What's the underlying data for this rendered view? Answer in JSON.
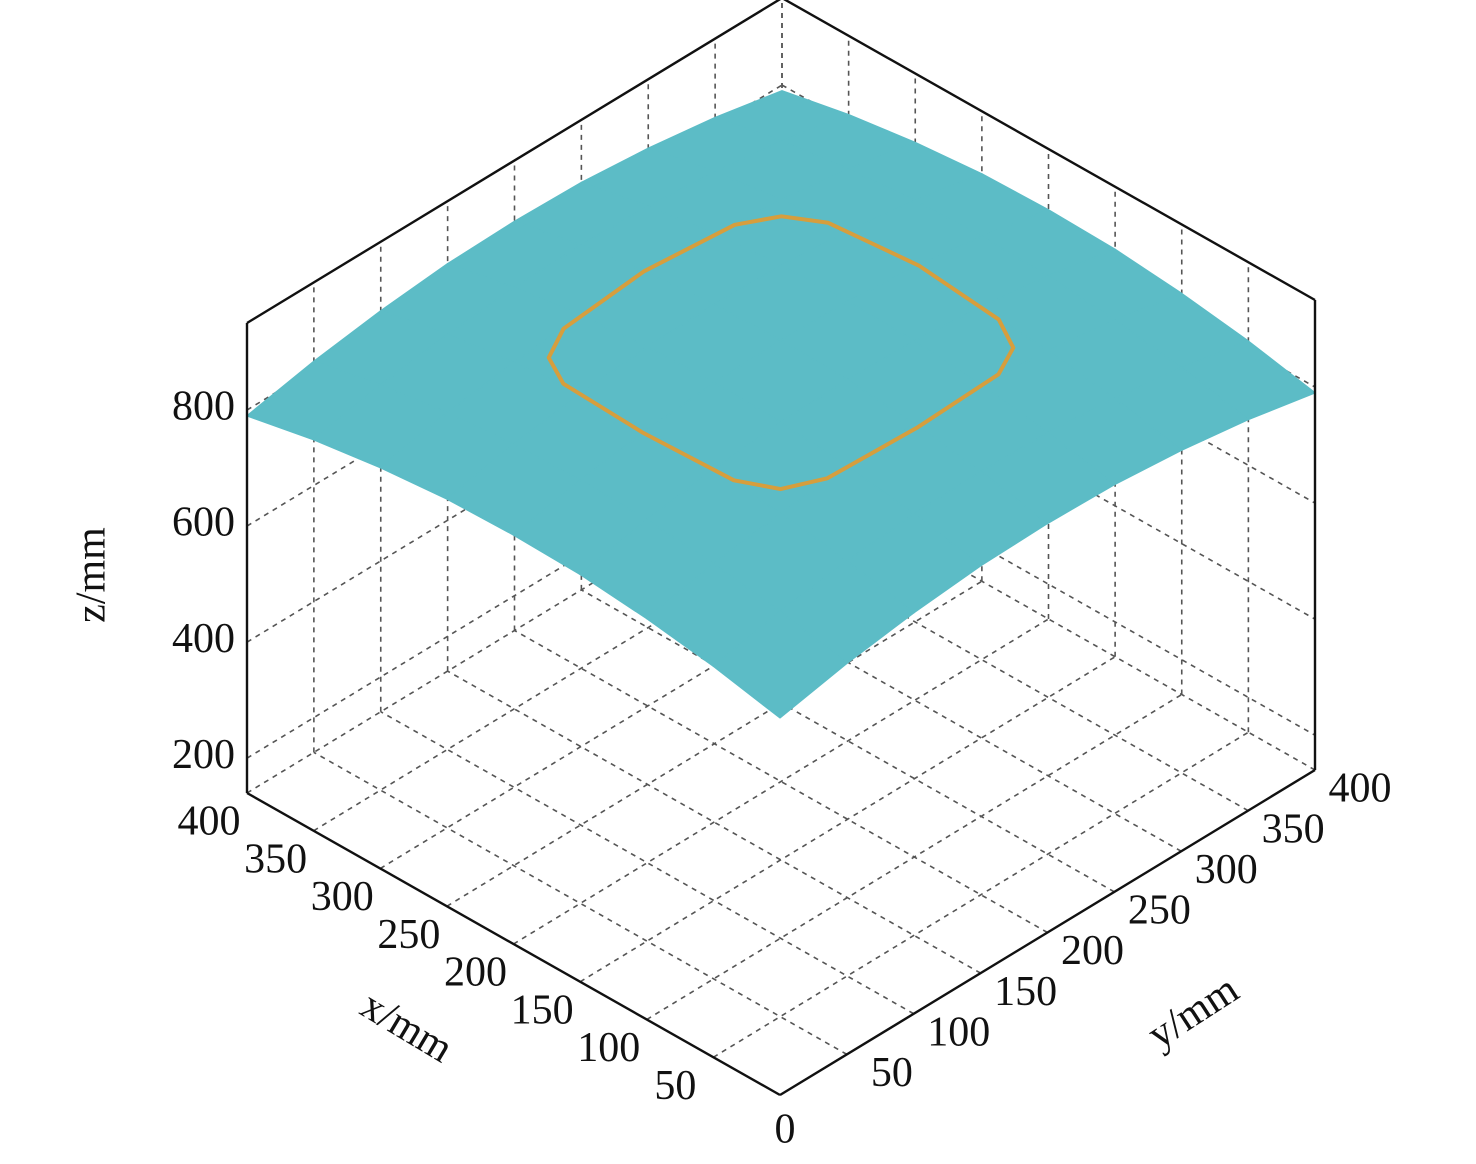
{
  "chart_data": {
    "type": "surface",
    "xlabel": "x/mm",
    "ylabel": "y/mm",
    "zlabel": "z/mm",
    "x": [
      0,
      50,
      100,
      150,
      200,
      250,
      300,
      350,
      400
    ],
    "y": [
      0,
      50,
      100,
      150,
      200,
      250,
      300,
      350,
      400
    ],
    "z": [
      [
        790,
        814,
        831,
        842,
        845,
        842,
        831,
        814,
        790
      ],
      [
        814,
        838,
        855,
        866,
        869,
        866,
        855,
        838,
        814
      ],
      [
        831,
        855,
        872,
        883,
        886,
        883,
        872,
        855,
        831
      ],
      [
        842,
        866,
        883,
        894,
        897,
        894,
        883,
        866,
        842
      ],
      [
        845,
        869,
        886,
        897,
        900,
        897,
        886,
        869,
        845
      ],
      [
        842,
        866,
        883,
        894,
        897,
        894,
        883,
        866,
        842
      ],
      [
        831,
        855,
        872,
        883,
        886,
        883,
        872,
        855,
        831
      ],
      [
        814,
        838,
        855,
        866,
        869,
        866,
        855,
        838,
        814
      ],
      [
        790,
        814,
        831,
        842,
        845,
        842,
        831,
        814,
        790
      ]
    ],
    "color": "#5cbcc6",
    "curve": {
      "color": "#e39a2e",
      "x": [
        303,
        299,
        287,
        264,
        200,
        136,
        113,
        101,
        97,
        101,
        113,
        136,
        200,
        264,
        287,
        299
      ],
      "y": [
        200,
        264,
        287,
        299,
        303,
        299,
        287,
        264,
        200,
        136,
        113,
        101,
        97,
        101,
        113,
        136
      ],
      "z": [
        885,
        881,
        879,
        881,
        885,
        881,
        879,
        881,
        885,
        881,
        879,
        881,
        885,
        881,
        879,
        881
      ]
    },
    "xlim": [
      0,
      400
    ],
    "ylim": [
      0,
      400
    ],
    "zlim": [
      140,
      950
    ],
    "xticks": [
      0,
      50,
      100,
      150,
      200,
      250,
      300,
      350,
      400
    ],
    "yticks": [
      50,
      100,
      150,
      200,
      250,
      300,
      350,
      400
    ],
    "zticks": [
      200,
      400,
      600,
      800
    ],
    "grid": true
  }
}
